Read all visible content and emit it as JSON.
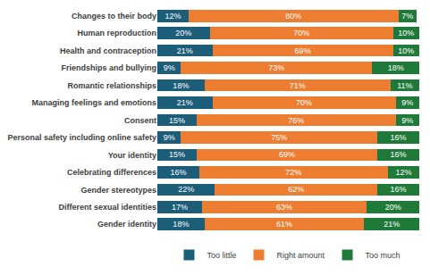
{
  "chart_data": {
    "type": "bar",
    "orientation": "horizontal",
    "stacked": true,
    "data_labels": true,
    "tick_labels": "y",
    "grid": false,
    "legend": "bottom",
    "categories": [
      "Changes to their body",
      "Human reproduction",
      "Health and contraception",
      "Friendships and bullying",
      "Romantic relationships",
      "Managing feelings and emotions",
      "Consent",
      "Personal safety including online safety",
      "Your identity",
      "Celebrating differences",
      "Gender stereotypes",
      "Different sexual identities",
      "Gender identity"
    ],
    "xlim": [
      0,
      100
    ],
    "series": [
      {
        "name": "Too little",
        "color": "#1c5d7a",
        "values": [
          12,
          20,
          21,
          9,
          18,
          21,
          15,
          9,
          15,
          16,
          22,
          17,
          18
        ],
        "value_labels": [
          "12%",
          "20%",
          "21%",
          "9%",
          "18%",
          "21%",
          "15%",
          "9%",
          "15%",
          "16%",
          "22%",
          "17%",
          "18%"
        ]
      },
      {
        "name": "Right amount",
        "color": "#ed7d31",
        "values": [
          80,
          70,
          69,
          73,
          71,
          70,
          76,
          75,
          69,
          72,
          62,
          63,
          61
        ],
        "value_labels": [
          "80%",
          "70%",
          "69%",
          "73%",
          "71%",
          "70%",
          "76%",
          "75%",
          "69%",
          "72%",
          "62%",
          "63%",
          "61%"
        ]
      },
      {
        "name": "Too much",
        "color": "#1f7a3a",
        "values": [
          7,
          10,
          10,
          18,
          11,
          9,
          9,
          16,
          16,
          12,
          16,
          20,
          21
        ],
        "value_labels": [
          "7%",
          "10%",
          "10%",
          "18%",
          "11%",
          "9%",
          "9%",
          "16%",
          "16%",
          "12%",
          "16%",
          "20%",
          "21%"
        ]
      }
    ]
  }
}
